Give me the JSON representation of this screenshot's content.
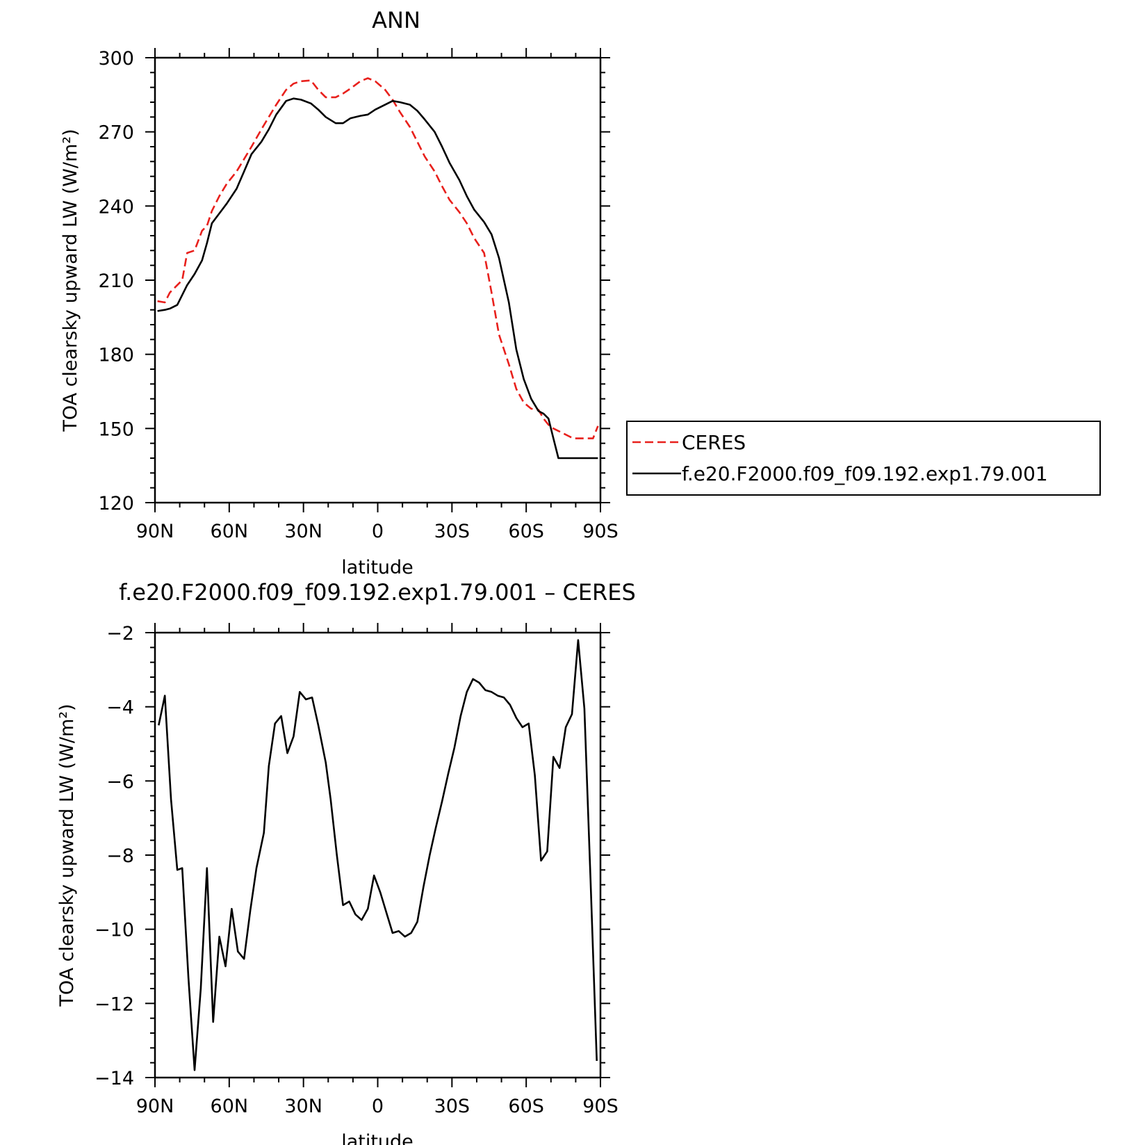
{
  "chart_data": [
    {
      "type": "line",
      "title": "ANN",
      "xlabel": "latitude",
      "ylabel": "TOA clearsky upward LW (W/m²)",
      "xlim": [
        90,
        -90
      ],
      "ylim": [
        120,
        300
      ],
      "x_ticks": [
        {
          "value": 90,
          "label": "90N"
        },
        {
          "value": 60,
          "label": "60N"
        },
        {
          "value": 30,
          "label": "30N"
        },
        {
          "value": 0,
          "label": "0"
        },
        {
          "value": -30,
          "label": "30S"
        },
        {
          "value": -60,
          "label": "60S"
        },
        {
          "value": -90,
          "label": "90S"
        }
      ],
      "y_ticks": [
        300,
        270,
        240,
        210,
        180,
        150,
        120
      ],
      "legend": {
        "placement": "right",
        "entries": [
          {
            "label": "CERES",
            "style": "dashed",
            "color": "#e8201c"
          },
          {
            "label": "f.e20.F2000.f09_f09.192.exp1.79.001",
            "style": "solid",
            "color": "#000000"
          }
        ]
      },
      "series": [
        {
          "name": "CERES",
          "color": "#e8201c",
          "style": "dashed",
          "x": [
            89,
            86,
            84,
            81,
            79,
            77,
            74,
            71,
            69,
            67,
            64,
            61,
            57,
            54,
            51,
            47,
            44,
            41,
            37,
            34,
            31,
            27,
            24,
            21,
            17,
            14,
            11,
            7,
            4,
            1,
            -3,
            -6,
            -9,
            -13,
            -16,
            -19,
            -23,
            -26,
            -29,
            -33,
            -36,
            -39,
            -43,
            -46,
            -49,
            -53,
            -56,
            -59,
            -62,
            -65,
            -67,
            -69,
            -71,
            -73,
            -75,
            -77,
            -79,
            -81,
            -83,
            -85,
            -87,
            -89
          ],
          "y": [
            201.5,
            201,
            205,
            208,
            210,
            221,
            222,
            230,
            232,
            238,
            244,
            249,
            254,
            259,
            264,
            271,
            276,
            281,
            287,
            289.5,
            290.5,
            290.8,
            287,
            284,
            284,
            285.5,
            287.5,
            290.5,
            291.7,
            290.5,
            287,
            283,
            278,
            272,
            266,
            260,
            254,
            248,
            242.5,
            237.5,
            233,
            227,
            221,
            205,
            188,
            176,
            166,
            160.5,
            158,
            157.5,
            154,
            151.5,
            150,
            149,
            148,
            147,
            146,
            146,
            146,
            146,
            146,
            151
          ]
        },
        {
          "name": "f.e20.F2000.f09_f09.192.exp1.79.001",
          "color": "#000000",
          "style": "solid",
          "x": [
            89,
            86,
            84,
            81,
            79,
            77,
            74,
            71,
            69,
            67,
            64,
            61,
            57,
            54,
            51,
            47,
            44,
            41,
            37,
            34,
            31,
            27,
            24,
            21,
            17,
            14,
            11,
            7,
            4,
            1,
            -3,
            -6,
            -9,
            -13,
            -16,
            -19,
            -23,
            -26,
            -29,
            -33,
            -36,
            -39,
            -43,
            -46,
            -49,
            -53,
            -56,
            -59,
            -62,
            -65,
            -67,
            -69,
            -71,
            -73,
            -75,
            -77,
            -79,
            -81,
            -83,
            -85,
            -87,
            -89
          ],
          "y": [
            197.5,
            198,
            198.5,
            200,
            204,
            208,
            212.5,
            218,
            225,
            233,
            237,
            241,
            247,
            254,
            261,
            266,
            271,
            277,
            282.5,
            283.5,
            283,
            281.5,
            279,
            276,
            273.5,
            273.5,
            275.5,
            276.5,
            277,
            279,
            281,
            282.5,
            282,
            281,
            278.5,
            275,
            270,
            264,
            257.5,
            250.5,
            244,
            238.5,
            233.5,
            228.5,
            219,
            201,
            182,
            170,
            162,
            157,
            156,
            154,
            146,
            138,
            138,
            138,
            138,
            138,
            138,
            138,
            138,
            138
          ]
        }
      ]
    },
    {
      "type": "line",
      "title": "f.e20.F2000.f09_f09.192.exp1.79.001 – CERES",
      "xlabel": "latitude",
      "ylabel": "TOA clearsky upward LW (W/m²)",
      "xlim": [
        90,
        -90
      ],
      "ylim": [
        -14,
        -2
      ],
      "x_ticks": [
        {
          "value": 90,
          "label": "90N"
        },
        {
          "value": 60,
          "label": "60N"
        },
        {
          "value": 30,
          "label": "30N"
        },
        {
          "value": 0,
          "label": "0"
        },
        {
          "value": -30,
          "label": "30S"
        },
        {
          "value": -60,
          "label": "60S"
        },
        {
          "value": -90,
          "label": "90S"
        }
      ],
      "y_ticks": [
        -2,
        -4,
        -6,
        -8,
        -10,
        -12,
        -14
      ],
      "series": [
        {
          "color": "#000000",
          "style": "solid",
          "x": [
            88.5,
            86,
            83.5,
            81,
            79,
            76.5,
            74,
            71.5,
            69,
            66.5,
            64,
            61.5,
            59,
            56.5,
            54,
            51.5,
            49,
            46,
            44,
            41.5,
            39,
            36.5,
            34,
            31.5,
            29,
            26.5,
            24,
            21,
            19,
            16.5,
            14,
            11.5,
            9,
            6.5,
            4,
            1.5,
            -1,
            -3.5,
            -6,
            -8.5,
            -11,
            -13.5,
            -16,
            -18.5,
            -21,
            -23.5,
            -26,
            -28.5,
            -31,
            -33.5,
            -36,
            -38.5,
            -41,
            -43.5,
            -46,
            -48.5,
            -51,
            -53.5,
            -56,
            -58.5,
            -61,
            -63.5,
            -66,
            -68.5,
            -71,
            -73.5,
            -76,
            -78.5,
            -81,
            -83.5,
            -86,
            -88.5
          ],
          "y": [
            -4.5,
            -3.7,
            -6.5,
            -8.4,
            -8.35,
            -11.3,
            -13.8,
            -11.6,
            -8.35,
            -12.5,
            -10.2,
            -11.0,
            -9.45,
            -10.6,
            -10.8,
            -9.5,
            -8.35,
            -7.4,
            -5.6,
            -4.45,
            -4.25,
            -5.25,
            -4.8,
            -3.6,
            -3.8,
            -3.75,
            -4.5,
            -5.5,
            -6.5,
            -8.0,
            -9.35,
            -9.25,
            -9.6,
            -9.75,
            -9.45,
            -8.55,
            -9.0,
            -9.55,
            -10.1,
            -10.05,
            -10.2,
            -10.1,
            -9.8,
            -8.85,
            -8.0,
            -7.25,
            -6.55,
            -5.8,
            -5.1,
            -4.25,
            -3.6,
            -3.25,
            -3.35,
            -3.55,
            -3.6,
            -3.7,
            -3.75,
            -3.95,
            -4.3,
            -4.55,
            -4.45,
            -5.85,
            -8.15,
            -7.9,
            -5.35,
            -5.65,
            -4.55,
            -4.2,
            -2.2,
            -4.05,
            -8.7,
            -13.55
          ]
        }
      ]
    }
  ]
}
